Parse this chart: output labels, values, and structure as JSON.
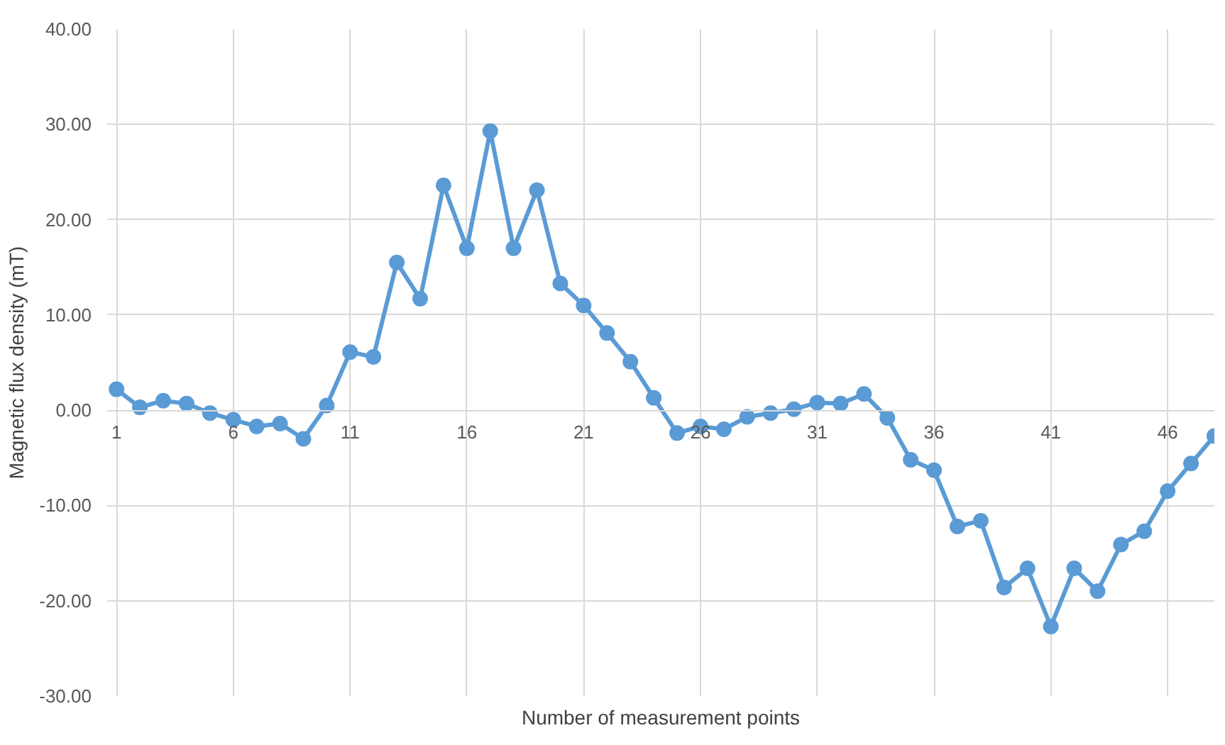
{
  "chart_data": {
    "type": "line",
    "xlabel": "Number of measurement points",
    "ylabel": "Magnetic flux density (mT)",
    "x": [
      1,
      2,
      3,
      4,
      5,
      6,
      7,
      8,
      9,
      10,
      11,
      12,
      13,
      14,
      15,
      16,
      17,
      18,
      19,
      20,
      21,
      22,
      23,
      24,
      25,
      26,
      27,
      28,
      29,
      30,
      31,
      32,
      33,
      34,
      35,
      36,
      37,
      38,
      39,
      40,
      41,
      42,
      43,
      44,
      45,
      46,
      47,
      48
    ],
    "series": [
      {
        "color": "#5b9bd5",
        "values": [
          2.2,
          0.3,
          1.0,
          0.7,
          -0.3,
          -1.0,
          -1.7,
          -1.4,
          -3.0,
          0.5,
          6.1,
          5.6,
          15.5,
          11.7,
          23.6,
          17.0,
          29.3,
          17.0,
          23.1,
          13.3,
          11.0,
          8.1,
          5.1,
          1.3,
          -2.4,
          -1.7,
          -2.0,
          -0.7,
          -0.3,
          0.1,
          0.8,
          0.7,
          1.7,
          -0.8,
          -5.2,
          -6.3,
          -12.2,
          -11.6,
          -18.6,
          -16.6,
          -22.7,
          -16.6,
          -19.0,
          -14.1,
          -12.7,
          -8.5,
          -5.6,
          -2.7
        ]
      }
    ],
    "xlim": [
      0.6,
      48
    ],
    "xticks": [
      1,
      6,
      11,
      16,
      21,
      26,
      31,
      36,
      41,
      46
    ],
    "ylim": [
      -30,
      40
    ],
    "yticks": [
      {
        "value": -30,
        "label": "-30.00"
      },
      {
        "value": -20,
        "label": "-20.00"
      },
      {
        "value": -10,
        "label": "-10.00"
      },
      {
        "value": 0,
        "label": "0.00"
      },
      {
        "value": 10,
        "label": "10.00"
      },
      {
        "value": 20,
        "label": "20.00"
      },
      {
        "value": 30,
        "label": "30.00"
      },
      {
        "value": 40,
        "label": "40.00"
      }
    ],
    "grid": true,
    "marker": "circle",
    "line_style": "solid"
  }
}
